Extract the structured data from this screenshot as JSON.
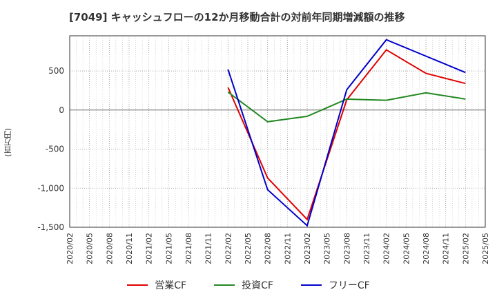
{
  "title": "[7049]  キャッシュフローの12か月移動合計の対前年同期増減額の推移",
  "y_unit_label": "(百万円)",
  "chart_data": {
    "type": "line",
    "x_ticks": [
      "2020/02",
      "2020/05",
      "2020/08",
      "2020/11",
      "2021/02",
      "2021/05",
      "2021/08",
      "2021/11",
      "2022/02",
      "2022/05",
      "2022/08",
      "2022/11",
      "2023/02",
      "2023/05",
      "2023/08",
      "2023/11",
      "2024/02",
      "2024/05",
      "2024/08",
      "2024/11",
      "2025/02",
      "2025/05"
    ],
    "ylim": [
      -1500,
      950
    ],
    "y_ticks": [
      500,
      0,
      -500,
      -1000,
      -1500
    ],
    "y_tick_labels": [
      "500",
      "0",
      "-500",
      "-1,000",
      "-1,500"
    ],
    "grid": true,
    "legend_position": "bottom",
    "series": [
      {
        "name": "営業CF",
        "color": "#e00000",
        "points": [
          [
            "2022/02",
            290
          ],
          [
            "2022/08",
            -870
          ],
          [
            "2023/02",
            -1400
          ],
          [
            "2023/08",
            130
          ],
          [
            "2024/02",
            770
          ],
          [
            "2024/08",
            470
          ],
          [
            "2025/02",
            340
          ]
        ]
      },
      {
        "name": "投資CF",
        "color": "#228822",
        "points": [
          [
            "2022/02",
            230
          ],
          [
            "2022/08",
            -150
          ],
          [
            "2023/02",
            -80
          ],
          [
            "2023/08",
            140
          ],
          [
            "2024/02",
            125
          ],
          [
            "2024/08",
            220
          ],
          [
            "2025/02",
            140
          ]
        ]
      },
      {
        "name": "フリーCF",
        "color": "#0000cc",
        "points": [
          [
            "2022/02",
            520
          ],
          [
            "2022/08",
            -1020
          ],
          [
            "2023/02",
            -1480
          ],
          [
            "2023/08",
            260
          ],
          [
            "2024/02",
            900
          ],
          [
            "2024/08",
            690
          ],
          [
            "2025/02",
            480
          ]
        ]
      }
    ]
  }
}
